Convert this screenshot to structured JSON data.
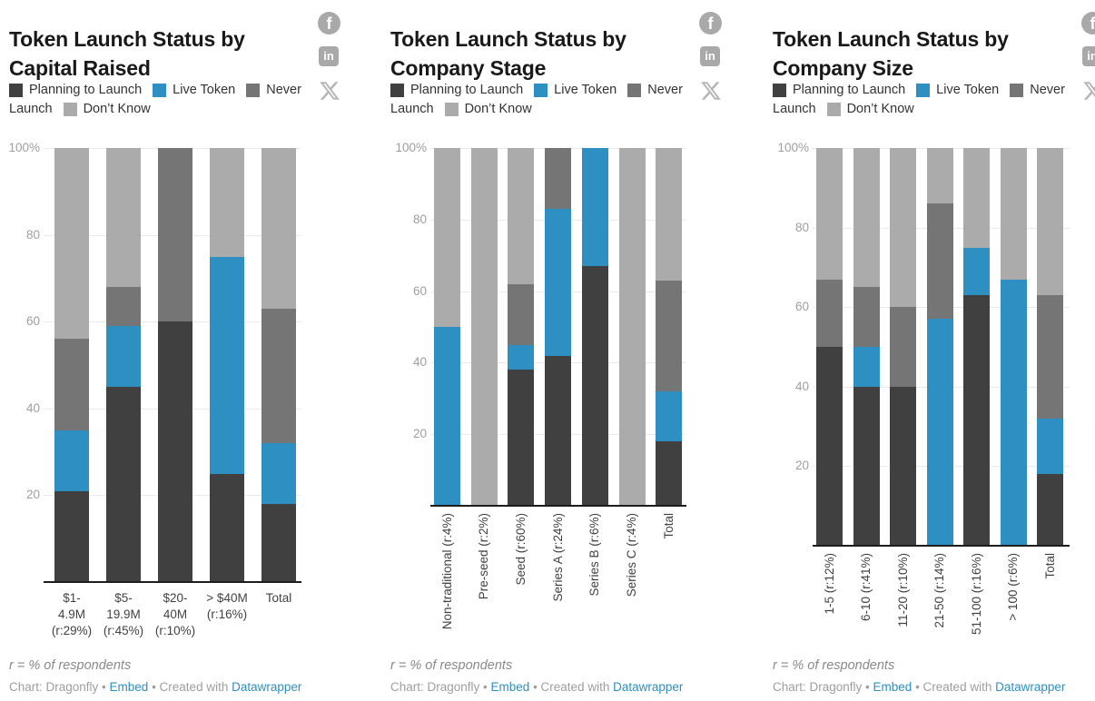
{
  "legend": {
    "items": [
      {
        "name": "planning",
        "label": "Planning to Launch",
        "color": "#404040"
      },
      {
        "name": "live",
        "label": "Live Token",
        "color": "#2e8fc2"
      },
      {
        "name": "never",
        "label": "Never Launch",
        "color": "#757575"
      },
      {
        "name": "dontknow",
        "label": "Don’t Know",
        "color": "#ababab"
      }
    ]
  },
  "footer": {
    "note": "r = % of respondents",
    "credit_chart": "Chart: Dragonfly",
    "sep1": " • ",
    "embed_link": "Embed",
    "sep2": " • ",
    "created_with": "Created with ",
    "datawrapper_link": "Datawrapper"
  },
  "social": {
    "facebook_glyph": "f",
    "linkedin_glyph": "in",
    "x_name": "X"
  },
  "chart_data": [
    {
      "type": "bar",
      "stacked": true,
      "title": "Token Launch Status by Capital Raised",
      "ylim": [
        0,
        100
      ],
      "grid": true,
      "legend_position": "top",
      "yticks": [
        {
          "value": 100,
          "label": "100%"
        },
        {
          "value": 80,
          "label": "80"
        },
        {
          "value": 60,
          "label": "60"
        },
        {
          "value": 40,
          "label": "40"
        },
        {
          "value": 20,
          "label": "20"
        }
      ],
      "categories": [
        "$1-4.9M (r:29%)",
        "$5-19.9M (r:45%)",
        "$20-40M (r:10%)",
        "> $40M (r:16%)",
        "Total"
      ],
      "tick_lines": [
        [
          "$1-",
          "4.9M",
          "(r:29%)"
        ],
        [
          "$5-",
          "19.9M",
          "(r:45%)"
        ],
        [
          "$20-",
          "40M",
          "(r:10%)"
        ],
        [
          "> $40M",
          "(r:16%)"
        ],
        [
          "Total"
        ]
      ],
      "series": [
        {
          "name": "Planning to Launch",
          "color": "#404040",
          "values": [
            21,
            45,
            60,
            25,
            18
          ]
        },
        {
          "name": "Live Token",
          "color": "#2e8fc2",
          "values": [
            14,
            14,
            0,
            50,
            14
          ]
        },
        {
          "name": "Never Launch",
          "color": "#757575",
          "values": [
            21,
            9,
            40,
            0,
            31
          ]
        },
        {
          "name": "Don’t Know",
          "color": "#ababab",
          "values": [
            44,
            32,
            0,
            25,
            37
          ]
        }
      ]
    },
    {
      "type": "bar",
      "stacked": true,
      "title": "Token Launch Status by Company Stage",
      "ylim": [
        0,
        100
      ],
      "grid": true,
      "legend_position": "top",
      "yticks": [
        {
          "value": 100,
          "label": "100%"
        },
        {
          "value": 80,
          "label": "80"
        },
        {
          "value": 60,
          "label": "60"
        },
        {
          "value": 40,
          "label": "40"
        },
        {
          "value": 20,
          "label": "20"
        }
      ],
      "categories": [
        "Non-traditional (r:4%)",
        "Pre-seed (r:2%)",
        "Seed (r:60%)",
        "Series A (r:24%)",
        "Series B (r:6%)",
        "Series C (r:4%)",
        "Total"
      ],
      "series": [
        {
          "name": "Planning to Launch",
          "color": "#404040",
          "values": [
            0,
            0,
            38,
            42,
            67,
            0,
            18
          ]
        },
        {
          "name": "Live Token",
          "color": "#2e8fc2",
          "values": [
            50,
            0,
            7,
            41,
            33,
            0,
            14
          ]
        },
        {
          "name": "Never Launch",
          "color": "#757575",
          "values": [
            0,
            0,
            17,
            17,
            0,
            0,
            31
          ]
        },
        {
          "name": "Don’t Know",
          "color": "#ababab",
          "values": [
            50,
            100,
            38,
            0,
            0,
            100,
            37
          ]
        }
      ]
    },
    {
      "type": "bar",
      "stacked": true,
      "title": "Token Launch Status by Company Size",
      "ylim": [
        0,
        100
      ],
      "grid": true,
      "legend_position": "top",
      "yticks": [
        {
          "value": 100,
          "label": "100%"
        },
        {
          "value": 80,
          "label": "80"
        },
        {
          "value": 60,
          "label": "60"
        },
        {
          "value": 40,
          "label": "40"
        },
        {
          "value": 20,
          "label": "20"
        }
      ],
      "categories": [
        "1-5 (r:12%)",
        "6-10 (r:41%)",
        "11-20 (r:10%)",
        "21-50 (r:14%)",
        "51-100 (r:16%)",
        "> 100 (r:6%)",
        "Total"
      ],
      "series": [
        {
          "name": "Planning to Launch",
          "color": "#404040",
          "values": [
            50,
            40,
            40,
            0,
            63,
            0,
            18
          ]
        },
        {
          "name": "Live Token",
          "color": "#2e8fc2",
          "values": [
            0,
            10,
            0,
            57,
            12,
            67,
            14
          ]
        },
        {
          "name": "Never Launch",
          "color": "#757575",
          "values": [
            17,
            15,
            20,
            29,
            0,
            0,
            31
          ]
        },
        {
          "name": "Don’t Know",
          "color": "#ababab",
          "values": [
            33,
            35,
            40,
            14,
            25,
            33,
            37
          ]
        }
      ]
    }
  ]
}
